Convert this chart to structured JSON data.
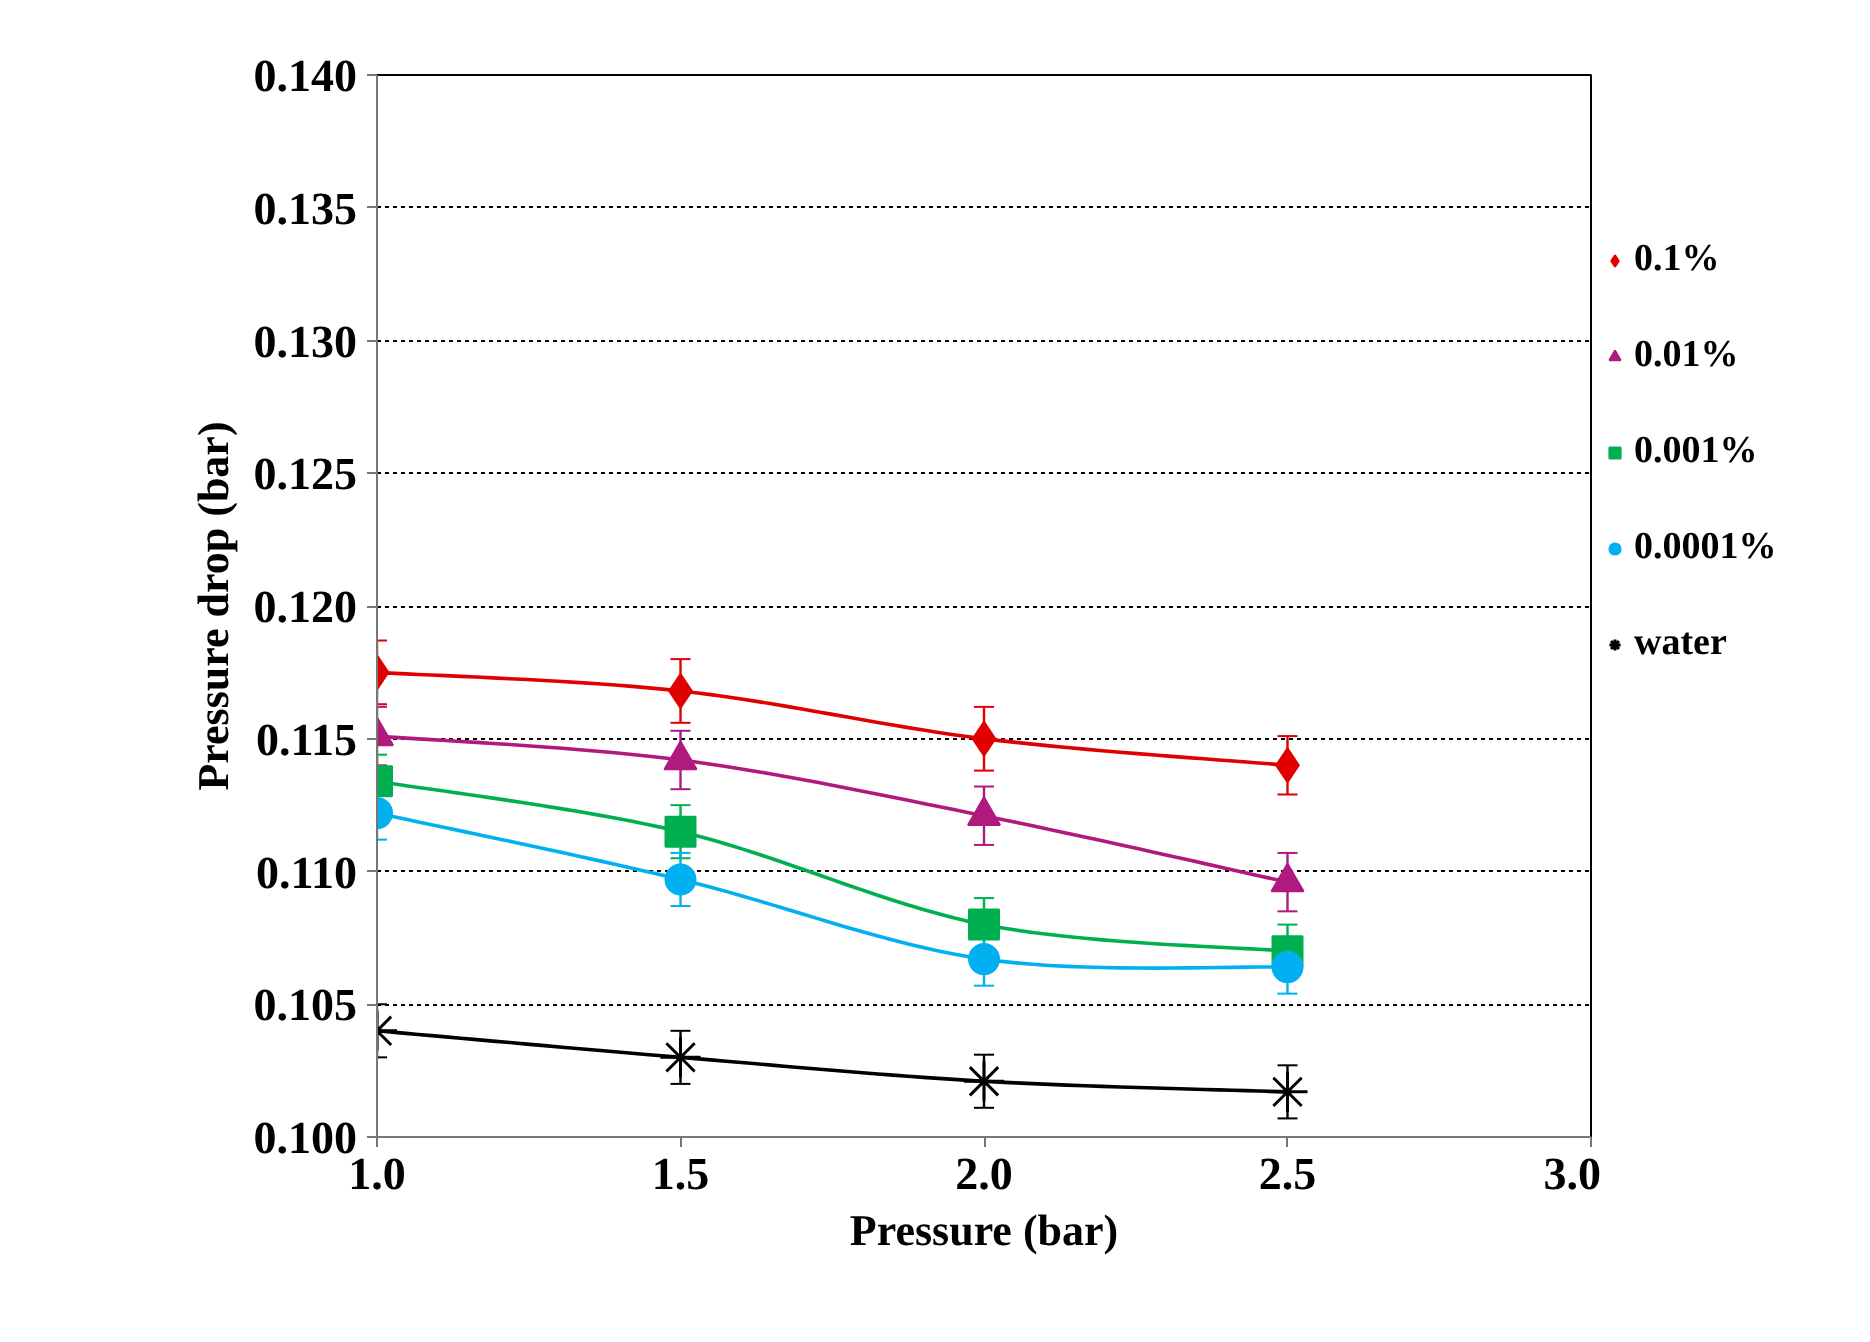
{
  "chart_data": {
    "type": "line",
    "xlabel": "Pressure (bar)",
    "ylabel": "Pressure drop (bar)",
    "x": [
      1.0,
      1.5,
      2.0,
      2.5
    ],
    "xlim": [
      1.0,
      3.0
    ],
    "xticks": [
      {
        "value": 1.0,
        "label": "1.0"
      },
      {
        "value": 1.5,
        "label": "1.5"
      },
      {
        "value": 2.0,
        "label": "2.0"
      },
      {
        "value": 2.5,
        "label": "2.5"
      },
      {
        "value": 3.0,
        "label": "3.0"
      }
    ],
    "ylim": [
      0.1,
      0.14
    ],
    "yticks": [
      {
        "value": 0.1,
        "label": "0.100"
      },
      {
        "value": 0.105,
        "label": "0.105"
      },
      {
        "value": 0.11,
        "label": "0.110"
      },
      {
        "value": 0.115,
        "label": "0.115"
      },
      {
        "value": 0.12,
        "label": "0.120"
      },
      {
        "value": 0.125,
        "label": "0.125"
      },
      {
        "value": 0.13,
        "label": "0.130"
      },
      {
        "value": 0.135,
        "label": "0.135"
      },
      {
        "value": 0.14,
        "label": "0.140"
      }
    ],
    "grid": "y",
    "legend": "right",
    "line_style": "solid",
    "series": [
      {
        "name": "0.1%",
        "color": "#e00000",
        "marker": "diamond",
        "values": [
          0.1175,
          0.1168,
          0.115,
          0.114
        ],
        "errors": [
          0.0012,
          0.0012,
          0.0012,
          0.0011
        ]
      },
      {
        "name": "0.01%",
        "color": "#b0197e",
        "marker": "triangle",
        "values": [
          0.1151,
          0.1142,
          0.1121,
          0.1096
        ],
        "errors": [
          0.0011,
          0.0011,
          0.0011,
          0.0011
        ]
      },
      {
        "name": "0.001%",
        "color": "#00b050",
        "marker": "square",
        "values": [
          0.1134,
          0.1115,
          0.108,
          0.107
        ],
        "errors": [
          0.001,
          0.001,
          0.001,
          0.001
        ]
      },
      {
        "name": "0.0001%",
        "color": "#00b0f0",
        "marker": "circle",
        "values": [
          0.1122,
          0.1097,
          0.1067,
          0.1064
        ],
        "errors": [
          0.001,
          0.001,
          0.001,
          0.001
        ]
      },
      {
        "name": "water",
        "color": "#000000",
        "marker": "cross",
        "values": [
          0.104,
          0.103,
          0.1021,
          0.1017
        ],
        "errors": [
          0.001,
          0.001,
          0.001,
          0.001
        ]
      }
    ]
  }
}
